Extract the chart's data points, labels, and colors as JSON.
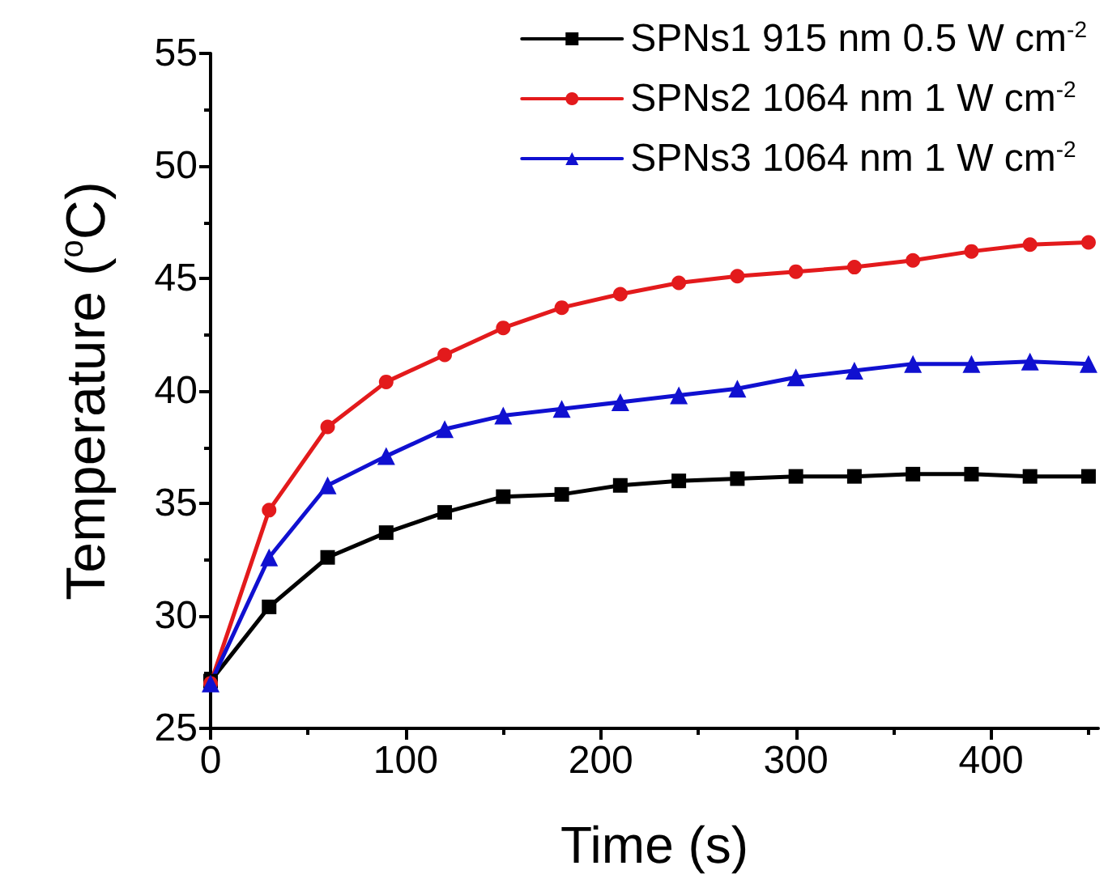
{
  "chart_data": {
    "type": "line",
    "xlabel": "Time (s)",
    "ylabel": "Temperature ($^{o}$C)",
    "x": [
      0,
      30,
      60,
      90,
      120,
      150,
      180,
      210,
      240,
      270,
      300,
      330,
      360,
      390,
      420,
      450
    ],
    "series": [
      {
        "name": "SPNs1 915 nm 0.5 W cm$^{-2}$",
        "color": "#000000",
        "marker": "square",
        "values": [
          27.1,
          30.4,
          32.6,
          33.7,
          34.6,
          35.3,
          35.4,
          35.8,
          36.0,
          36.1,
          36.2,
          36.2,
          36.3,
          36.3,
          36.2,
          36.2
        ]
      },
      {
        "name": "SPNs2 1064 nm 1 W cm$^{-2}$",
        "color": "#e31a1c",
        "marker": "circle",
        "values": [
          27.0,
          34.7,
          38.4,
          40.4,
          41.6,
          42.8,
          43.7,
          44.3,
          44.8,
          45.1,
          45.3,
          45.5,
          45.8,
          46.2,
          46.5,
          46.6
        ]
      },
      {
        "name": "SPNs3 1064 nm 1 W cm$^{-2}$",
        "color": "#1010d0",
        "marker": "triangle",
        "values": [
          27.0,
          32.6,
          35.8,
          37.1,
          38.3,
          38.9,
          39.2,
          39.5,
          39.8,
          40.1,
          40.6,
          40.9,
          41.2,
          41.2,
          41.3,
          41.2
        ]
      }
    ],
    "xlim": [
      0,
      455
    ],
    "xticks": [
      0,
      100,
      200,
      300,
      400
    ],
    "ylim": [
      25,
      55
    ],
    "yticks": [
      25,
      30,
      35,
      40,
      45,
      50,
      55
    ],
    "grid": false,
    "legend": "top right",
    "line_style": "solid"
  }
}
